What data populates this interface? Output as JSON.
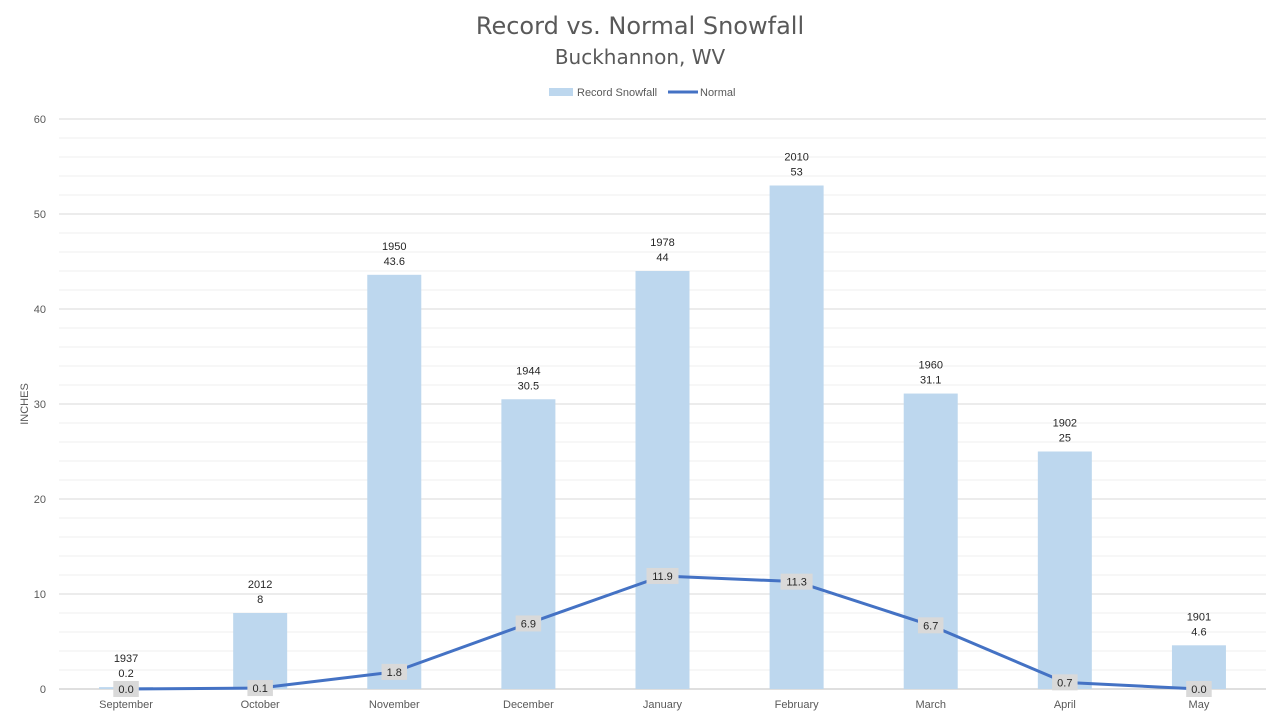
{
  "chart_data": {
    "type": "bar",
    "title": "Record vs. Normal Snowfall",
    "subtitle": "Buckhannon, WV",
    "ylabel": "INCHES",
    "xlabel": "",
    "ylim": [
      0,
      60
    ],
    "yticks": [
      0,
      10,
      20,
      30,
      40,
      50,
      60
    ],
    "grid": true,
    "legend_position": "top",
    "categories": [
      "September",
      "October",
      "November",
      "December",
      "January",
      "February",
      "March",
      "April",
      "May"
    ],
    "series": [
      {
        "name": "Record Snowfall",
        "type": "bar",
        "color": "#bdd7ee",
        "values": [
          0.2,
          8,
          43.6,
          30.5,
          44,
          53,
          31.1,
          25,
          4.6
        ],
        "years": [
          "1937",
          "2012",
          "1950",
          "1944",
          "1978",
          "2010",
          "1960",
          "1902",
          "1901"
        ],
        "value_labels": [
          "0.2",
          "8",
          "43.6",
          "30.5",
          "44",
          "53",
          "31.1",
          "25",
          "4.6"
        ]
      },
      {
        "name": "Normal",
        "type": "line",
        "color": "#4472c4",
        "values": [
          0.0,
          0.1,
          1.8,
          6.9,
          11.9,
          11.3,
          6.7,
          0.7,
          0.0
        ],
        "value_labels": [
          "0.0",
          "0.1",
          "1.8",
          "6.9",
          "11.9",
          "11.3",
          "6.7",
          "0.7",
          "0.0"
        ]
      }
    ]
  }
}
